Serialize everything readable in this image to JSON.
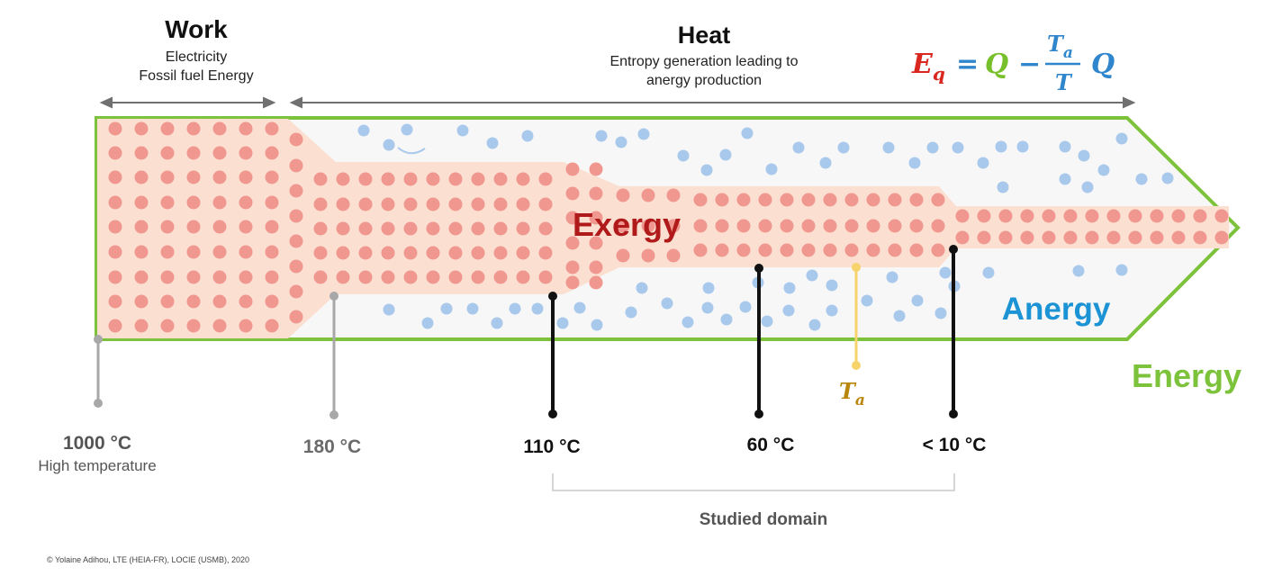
{
  "headers": {
    "work": {
      "title": "Work",
      "lines": [
        "Electricity",
        "Fossil fuel Energy"
      ]
    },
    "heat": {
      "title": "Heat",
      "lines": [
        "Entropy generation leading to",
        "anergy production"
      ]
    }
  },
  "equation": {
    "lhs": "E",
    "lhs_sub": "q",
    "eq_sign": "=",
    "q1": "Q",
    "minus": "−",
    "num": "T",
    "num_sub": "a",
    "den": "T",
    "q2": "Q"
  },
  "labels": {
    "exergy": "Exergy",
    "anergy": "Anergy",
    "energy": "Energy",
    "ta": "T",
    "ta_sub": "a",
    "studied_domain": "Studied domain",
    "copyright": "© Yolaine Adihou, LTE (HEIA-FR), LOCIE (USMB), 2020"
  },
  "temperatures": [
    {
      "value": "1000 °C",
      "note": "High temperature"
    },
    {
      "value": "180 °C"
    },
    {
      "value": "110 °C"
    },
    {
      "value": "60 °C"
    },
    {
      "value": "< 10 °C"
    }
  ],
  "colors": {
    "arrow_outline": "#7dc23b",
    "exergy_band": "#fbe0d2",
    "exergy_dot": "#f0978f",
    "anergy_dot": "#a9c9ec",
    "exergy_text": "#b01a1a",
    "anergy_text": "#1c93d4",
    "energy_text": "#7dc23b",
    "eq_red": "#d9271f",
    "eq_green": "#78c02b",
    "eq_blue": "#2f86cc",
    "ta_color": "#f6d36b",
    "ta_text": "#b8860b",
    "marker_gray": "#a8a8a8",
    "marker_black": "#111111"
  }
}
